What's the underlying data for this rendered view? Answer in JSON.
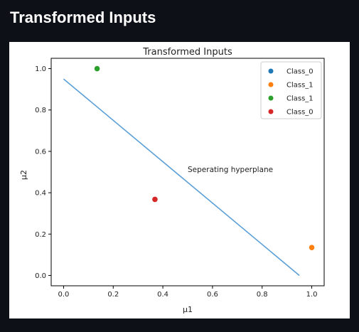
{
  "page": {
    "heading": "Transformed Inputs"
  },
  "chart_data": {
    "type": "scatter",
    "title": "Transformed Inputs",
    "xlabel": "μ1",
    "ylabel": "μ2",
    "xlim": [
      -0.05,
      1.05
    ],
    "ylim": [
      -0.05,
      1.05
    ],
    "xticks": [
      "0.0",
      "0.2",
      "0.4",
      "0.6",
      "0.8",
      "1.0"
    ],
    "yticks": [
      "0.0",
      "0.2",
      "0.4",
      "0.6",
      "0.8",
      "1.0"
    ],
    "grid": false,
    "legend_position": "top-right",
    "series": [
      {
        "name": "Class_0",
        "color": "#1f77b4",
        "points": []
      },
      {
        "name": "Class_1",
        "color": "#ff7f0e",
        "points": [
          {
            "x": 1.0,
            "y": 0.135
          }
        ]
      },
      {
        "name": "Class_1",
        "color": "#2ca02c",
        "points": [
          {
            "x": 0.135,
            "y": 1.0
          }
        ]
      },
      {
        "name": "Class_0",
        "color": "#d62728",
        "points": [
          {
            "x": 0.368,
            "y": 0.368
          }
        ]
      }
    ],
    "line": {
      "name": "separating-hyperplane",
      "color": "#5b9fd6",
      "points": [
        {
          "x": 0.0,
          "y": 0.95
        },
        {
          "x": 0.95,
          "y": 0.0
        }
      ]
    },
    "annotation": {
      "text": "Seperating hyperplane",
      "x": 0.5,
      "y": 0.5
    }
  }
}
